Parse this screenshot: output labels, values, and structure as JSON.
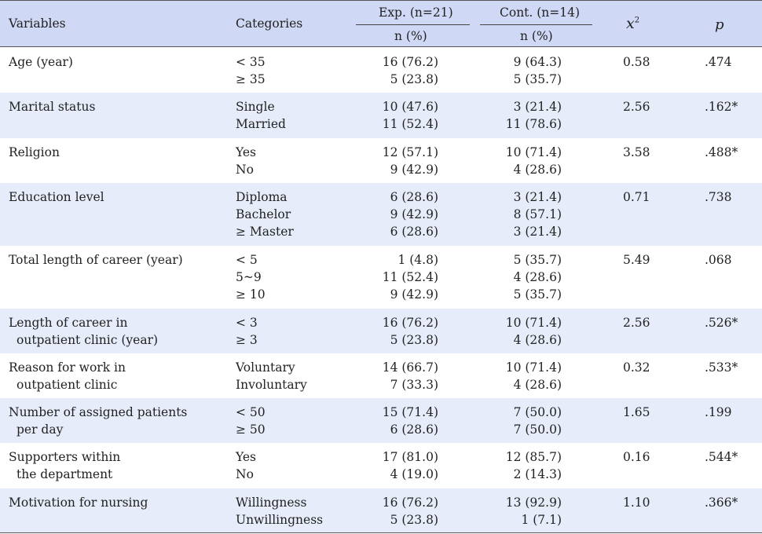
{
  "header": {
    "variables": "Variables",
    "categories": "Categories",
    "exp_group": "Exp. (n=21)",
    "cont_group": "Cont. (n=14)",
    "n_pct_exp": "n (%)",
    "n_pct_cont": "n (%)",
    "chi_x": "x",
    "chi_sup": "2",
    "p": "p"
  },
  "rows": [
    {
      "variable": [
        "Age (year)"
      ],
      "categories": [
        "< 35",
        "≥ 35"
      ],
      "exp": [
        "16 (76.2)",
        "5 (23.8)"
      ],
      "cont": [
        "9 (64.3)",
        "5 (35.7)"
      ],
      "chi2": "0.58",
      "p": ".474"
    },
    {
      "variable": [
        "Marital status"
      ],
      "categories": [
        "Single",
        "Married"
      ],
      "exp": [
        "10 (47.6)",
        "11 (52.4)"
      ],
      "cont": [
        "3 (21.4)",
        "11 (78.6)"
      ],
      "chi2": "2.56",
      "p": ".162*"
    },
    {
      "variable": [
        "Religion"
      ],
      "categories": [
        "Yes",
        "No"
      ],
      "exp": [
        "12 (57.1)",
        "9 (42.9)"
      ],
      "cont": [
        "10 (71.4)",
        "4 (28.6)"
      ],
      "chi2": "3.58",
      "p": ".488*"
    },
    {
      "variable": [
        "Education level"
      ],
      "categories": [
        "Diploma",
        "Bachelor",
        "≥ Master"
      ],
      "exp": [
        "6 (28.6)",
        "9 (42.9)",
        "6 (28.6)"
      ],
      "cont": [
        "3 (21.4)",
        "8 (57.1)",
        "3 (21.4)"
      ],
      "chi2": "0.71",
      "p": ".738"
    },
    {
      "variable": [
        "Total length of career (year)"
      ],
      "categories": [
        "< 5",
        "5~9",
        "≥ 10"
      ],
      "exp": [
        "1 (4.8)",
        "11 (52.4)",
        "9 (42.9)"
      ],
      "cont": [
        "5 (35.7)",
        "4 (28.6)",
        "5 (35.7)"
      ],
      "chi2": "5.49",
      "p": ".068"
    },
    {
      "variable": [
        "Length of career in",
        "outpatient clinic (year)"
      ],
      "categories": [
        "< 3",
        "≥ 3"
      ],
      "exp": [
        "16 (76.2)",
        "5 (23.8)"
      ],
      "cont": [
        "10 (71.4)",
        "4 (28.6)"
      ],
      "chi2": "2.56",
      "p": ".526*"
    },
    {
      "variable": [
        "Reason for work in",
        "outpatient clinic"
      ],
      "categories": [
        "Voluntary",
        "Involuntary"
      ],
      "exp": [
        "14 (66.7)",
        "7 (33.3)"
      ],
      "cont": [
        "10 (71.4)",
        "4 (28.6)"
      ],
      "chi2": "0.32",
      "p": ".533*"
    },
    {
      "variable": [
        "Number of assigned patients",
        "per day"
      ],
      "categories": [
        "< 50",
        "≥ 50"
      ],
      "exp": [
        "15 (71.4)",
        "6 (28.6)"
      ],
      "cont": [
        "7 (50.0)",
        "7 (50.0)"
      ],
      "chi2": "1.65",
      "p": ".199"
    },
    {
      "variable": [
        "Supporters within",
        "the department"
      ],
      "categories": [
        "Yes",
        "No"
      ],
      "exp": [
        "17 (81.0)",
        "4 (19.0)"
      ],
      "cont": [
        "12 (85.7)",
        "2 (14.3)"
      ],
      "chi2": "0.16",
      "p": ".544*"
    },
    {
      "variable": [
        "Motivation for nursing"
      ],
      "categories": [
        "Willingness",
        "Unwillingness"
      ],
      "exp": [
        "16 (76.2)",
        "5 (23.8)"
      ],
      "cont": [
        "13 (92.9)",
        "1 (7.1)"
      ],
      "chi2": "1.10",
      "p": ".366*"
    }
  ]
}
